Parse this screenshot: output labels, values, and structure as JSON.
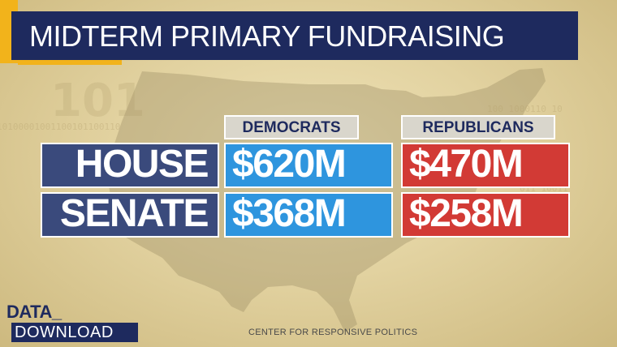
{
  "title": "MIDTERM PRIMARY FUNDRAISING",
  "columns": [
    "DEMOCRATS",
    "REPUBLICANS"
  ],
  "rows": [
    {
      "label": "HOUSE",
      "democrats": "$620M",
      "republicans": "$470M"
    },
    {
      "label": "SENATE",
      "democrats": "$368M",
      "republicans": "$258M"
    }
  ],
  "logo": {
    "line1": "DATA_",
    "line2": "DOWNLOAD"
  },
  "source": "CENTER FOR RESPONSIVE POLITICS",
  "colors": {
    "navy": "#1e2a5e",
    "accent": "#f2b31b",
    "democrats": "#2e95de",
    "republicans": "#d23a35",
    "row_label": "#3a4a7c"
  }
}
